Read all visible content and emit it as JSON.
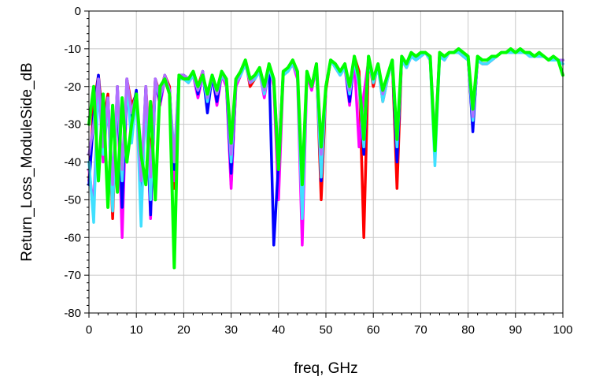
{
  "chart_data": {
    "type": "line",
    "title": "",
    "xlabel": "freq, GHz",
    "ylabel": "Return_Loss_ModuleSide_dB",
    "xlim": [
      0,
      100
    ],
    "ylim": [
      -80,
      0
    ],
    "xticks": [
      0,
      10,
      20,
      30,
      40,
      50,
      60,
      70,
      80,
      90,
      100
    ],
    "yticks": [
      0,
      -10,
      -20,
      -30,
      -40,
      -50,
      -60,
      -70,
      -80
    ],
    "grid": true,
    "legend": "none",
    "colors": {
      "red": "#ff0000",
      "magenta": "#ff00ff",
      "blue": "#0000ff",
      "cyan": "#40e0ff",
      "violet": "#b070ff",
      "green": "#00ff00",
      "grid": "#c8c8c8"
    },
    "series": [
      {
        "color": "red",
        "x": [
          0,
          1,
          2,
          3,
          4,
          5,
          6,
          7,
          8,
          9,
          10,
          11,
          12,
          13,
          14,
          15,
          16,
          17,
          18,
          19,
          20,
          21,
          22,
          23,
          24,
          25,
          26,
          27,
          28,
          29,
          30,
          31,
          32,
          33,
          34,
          35,
          36,
          37,
          38,
          39,
          40,
          41,
          42,
          43,
          44,
          45,
          46,
          47,
          48,
          49,
          50,
          51,
          52,
          53,
          54,
          55,
          56,
          57,
          58,
          59,
          60,
          61,
          62,
          63,
          64,
          65,
          66,
          67,
          68,
          69,
          70,
          71,
          72,
          73,
          74,
          75,
          76,
          77,
          78,
          79,
          80,
          81,
          82,
          83,
          84,
          85,
          86,
          87,
          88,
          89,
          90,
          91,
          92,
          93,
          94,
          95,
          96,
          97,
          98,
          99,
          100
        ],
        "y": [
          -45,
          -25,
          -17,
          -30,
          -22,
          -55,
          -20,
          -57,
          -18,
          -25,
          -22,
          -52,
          -20,
          -40,
          -18,
          -22,
          -17,
          -20,
          -47,
          -17,
          -17,
          -18,
          -16,
          -20,
          -16,
          -25,
          -17,
          -22,
          -16,
          -18,
          -46,
          -20,
          -17,
          -13,
          -20,
          -18,
          -15,
          -22,
          -14,
          -18,
          -44,
          -16,
          -15,
          -13,
          -16,
          -50,
          -16,
          -20,
          -14,
          -50,
          -21,
          -13,
          -14,
          -16,
          -14,
          -22,
          -12,
          -16,
          -60,
          -12,
          -20,
          -14,
          -24,
          -18,
          -13,
          -47,
          -12,
          -15,
          -11,
          -12,
          -12,
          -11,
          -13,
          -35,
          -11,
          -13,
          -11,
          -11,
          -10,
          -12,
          -13,
          -30,
          -13,
          -14,
          -14,
          -13,
          -12,
          -11,
          -11,
          -10,
          -11,
          -10,
          -11,
          -11,
          -12,
          -11,
          -12,
          -13,
          -12,
          -13,
          -13
        ]
      },
      {
        "color": "magenta",
        "x": [
          0,
          1,
          2,
          3,
          4,
          5,
          6,
          7,
          8,
          9,
          10,
          11,
          12,
          13,
          14,
          15,
          16,
          17,
          18,
          19,
          20,
          21,
          22,
          23,
          24,
          25,
          26,
          27,
          28,
          29,
          30,
          31,
          32,
          33,
          34,
          35,
          36,
          37,
          38,
          39,
          40,
          41,
          42,
          43,
          44,
          45,
          46,
          47,
          48,
          49,
          50,
          51,
          52,
          53,
          54,
          55,
          56,
          57,
          58,
          59,
          60,
          61,
          62,
          63,
          64,
          65,
          66,
          67,
          68,
          69,
          70,
          71,
          72,
          73,
          74,
          75,
          76,
          77,
          78,
          79,
          80,
          81,
          82,
          83,
          84,
          85,
          86,
          87,
          88,
          89,
          90,
          91,
          92,
          93,
          94,
          95,
          96,
          97,
          98,
          99,
          100
        ],
        "y": [
          -42,
          -52,
          -18,
          -40,
          -24,
          -48,
          -21,
          -60,
          -19,
          -30,
          -22,
          -50,
          -21,
          -55,
          -19,
          -25,
          -18,
          -22,
          -45,
          -18,
          -18,
          -19,
          -17,
          -23,
          -17,
          -22,
          -17,
          -25,
          -17,
          -20,
          -47,
          -20,
          -17,
          -14,
          -19,
          -18,
          -16,
          -23,
          -15,
          -20,
          -50,
          -17,
          -16,
          -14,
          -18,
          -62,
          -17,
          -21,
          -15,
          -42,
          -20,
          -13,
          -15,
          -17,
          -15,
          -25,
          -13,
          -36,
          -22,
          -13,
          -18,
          -15,
          -22,
          -17,
          -13,
          -38,
          -13,
          -15,
          -12,
          -13,
          -12,
          -11,
          -13,
          -38,
          -12,
          -13,
          -11,
          -11,
          -11,
          -12,
          -13,
          -30,
          -13,
          -14,
          -14,
          -13,
          -12,
          -11,
          -11,
          -11,
          -11,
          -11,
          -11,
          -12,
          -12,
          -12,
          -12,
          -13,
          -13,
          -13,
          -14
        ]
      },
      {
        "color": "blue",
        "x": [
          0,
          1,
          2,
          3,
          4,
          5,
          6,
          7,
          8,
          9,
          10,
          11,
          12,
          13,
          14,
          15,
          16,
          17,
          18,
          19,
          20,
          21,
          22,
          23,
          24,
          25,
          26,
          27,
          28,
          29,
          30,
          31,
          32,
          33,
          34,
          35,
          36,
          37,
          38,
          39,
          40,
          41,
          42,
          43,
          44,
          45,
          46,
          47,
          48,
          49,
          50,
          51,
          52,
          53,
          54,
          55,
          56,
          57,
          58,
          59,
          60,
          61,
          62,
          63,
          64,
          65,
          66,
          67,
          68,
          69,
          70,
          71,
          72,
          73,
          74,
          75,
          76,
          77,
          78,
          79,
          80,
          81,
          82,
          83,
          84,
          85,
          86,
          87,
          88,
          89,
          90,
          91,
          92,
          93,
          94,
          95,
          96,
          97,
          98,
          99,
          100
        ],
        "y": [
          -46,
          -28,
          -17,
          -35,
          -23,
          -50,
          -20,
          -52,
          -18,
          -28,
          -21,
          -48,
          -20,
          -54,
          -18,
          -24,
          -17,
          -21,
          -42,
          -17,
          -17,
          -18,
          -16,
          -22,
          -16,
          -27,
          -17,
          -24,
          -16,
          -19,
          -43,
          -19,
          -16,
          -13,
          -19,
          -17,
          -15,
          -21,
          -14,
          -62,
          -40,
          -16,
          -15,
          -13,
          -17,
          -47,
          -16,
          -20,
          -14,
          -45,
          -20,
          -13,
          -14,
          -16,
          -14,
          -24,
          -12,
          -18,
          -38,
          -12,
          -18,
          -14,
          -23,
          -17,
          -13,
          -40,
          -12,
          -14,
          -11,
          -12,
          -11,
          -11,
          -12,
          -36,
          -11,
          -12,
          -11,
          -11,
          -10,
          -11,
          -12,
          -32,
          -12,
          -13,
          -13,
          -12,
          -12,
          -11,
          -11,
          -10,
          -11,
          -10,
          -11,
          -11,
          -12,
          -11,
          -12,
          -13,
          -12,
          -13,
          -13
        ]
      },
      {
        "color": "cyan",
        "x": [
          0,
          1,
          2,
          3,
          4,
          5,
          6,
          7,
          8,
          9,
          10,
          11,
          12,
          13,
          14,
          15,
          16,
          17,
          18,
          19,
          20,
          21,
          22,
          23,
          24,
          25,
          26,
          27,
          28,
          29,
          30,
          31,
          32,
          33,
          34,
          35,
          36,
          37,
          38,
          39,
          40,
          41,
          42,
          43,
          44,
          45,
          46,
          47,
          48,
          49,
          50,
          51,
          52,
          53,
          54,
          55,
          56,
          57,
          58,
          59,
          60,
          61,
          62,
          63,
          64,
          65,
          66,
          67,
          68,
          69,
          70,
          71,
          72,
          73,
          74,
          75,
          76,
          77,
          78,
          79,
          80,
          81,
          82,
          83,
          84,
          85,
          86,
          87,
          88,
          89,
          90,
          91,
          92,
          93,
          94,
          95,
          96,
          97,
          98,
          99,
          100
        ],
        "y": [
          -40,
          -56,
          -18,
          -38,
          -24,
          -53,
          -21,
          -45,
          -19,
          -35,
          -22,
          -57,
          -21,
          -50,
          -19,
          -23,
          -18,
          -22,
          -38,
          -18,
          -18,
          -19,
          -17,
          -21,
          -17,
          -24,
          -17,
          -22,
          -17,
          -19,
          -40,
          -19,
          -17,
          -14,
          -19,
          -18,
          -16,
          -22,
          -15,
          -19,
          -42,
          -17,
          -16,
          -14,
          -17,
          -55,
          -16,
          -20,
          -15,
          -44,
          -20,
          -13,
          -15,
          -17,
          -15,
          -22,
          -13,
          -20,
          -36,
          -13,
          -19,
          -15,
          -24,
          -18,
          -13,
          -36,
          -13,
          -15,
          -12,
          -13,
          -12,
          -11,
          -13,
          -41,
          -12,
          -13,
          -11,
          -11,
          -11,
          -12,
          -13,
          -29,
          -13,
          -14,
          -14,
          -13,
          -12,
          -11,
          -11,
          -11,
          -11,
          -11,
          -11,
          -12,
          -12,
          -12,
          -12,
          -13,
          -13,
          -13,
          -14
        ]
      },
      {
        "color": "violet",
        "x": [
          0,
          1,
          2,
          3,
          4,
          5,
          6,
          7,
          8,
          9,
          10,
          11,
          12,
          13,
          14,
          15,
          16,
          17,
          18,
          19,
          20,
          21,
          22,
          23,
          24,
          25,
          26,
          27,
          28,
          29,
          30,
          31,
          32,
          33,
          34,
          35,
          36,
          37,
          38,
          39,
          40,
          41,
          42,
          43,
          44,
          45,
          46,
          47,
          48,
          49,
          50,
          51,
          52,
          53,
          54,
          55,
          56,
          57,
          58,
          59,
          60,
          61,
          62,
          63,
          64,
          65,
          66,
          67,
          68,
          69,
          70,
          71,
          72,
          73,
          74,
          75,
          76,
          77,
          78,
          79,
          80,
          81,
          82,
          83,
          84,
          85,
          86,
          87,
          88,
          89,
          90,
          91,
          92,
          93,
          94,
          95,
          96,
          97,
          98,
          99,
          100
        ],
        "y": [
          -38,
          -30,
          -18,
          -36,
          -23,
          -46,
          -20,
          -42,
          -18,
          -27,
          -22,
          -45,
          -20,
          -44,
          -18,
          -23,
          -17,
          -21,
          -40,
          -17,
          -17,
          -18,
          -16,
          -21,
          -16,
          -23,
          -17,
          -22,
          -16,
          -19,
          -38,
          -19,
          -16,
          -13,
          -19,
          -17,
          -15,
          -21,
          -14,
          -18,
          -40,
          -16,
          -15,
          -13,
          -17,
          -45,
          -16,
          -20,
          -14,
          -38,
          -20,
          -13,
          -14,
          -16,
          -14,
          -21,
          -12,
          -18,
          -32,
          -12,
          -18,
          -14,
          -22,
          -17,
          -13,
          -34,
          -12,
          -14,
          -11,
          -12,
          -11,
          -11,
          -12,
          -34,
          -11,
          -12,
          -11,
          -11,
          -10,
          -11,
          -12,
          -28,
          -12,
          -13,
          -13,
          -12,
          -12,
          -11,
          -11,
          -10,
          -11,
          -10,
          -11,
          -11,
          -12,
          -11,
          -12,
          -13,
          -12,
          -13,
          -13
        ]
      },
      {
        "color": "green",
        "x": [
          0,
          1,
          2,
          3,
          4,
          5,
          6,
          7,
          8,
          9,
          10,
          11,
          12,
          13,
          14,
          15,
          16,
          17,
          18,
          19,
          20,
          21,
          22,
          23,
          24,
          25,
          26,
          27,
          28,
          29,
          30,
          31,
          32,
          33,
          34,
          35,
          36,
          37,
          38,
          39,
          40,
          41,
          42,
          43,
          44,
          45,
          46,
          47,
          48,
          49,
          50,
          51,
          52,
          53,
          54,
          55,
          56,
          57,
          58,
          59,
          60,
          61,
          62,
          63,
          64,
          65,
          66,
          67,
          68,
          69,
          70,
          71,
          72,
          73,
          74,
          75,
          76,
          77,
          78,
          79,
          80,
          81,
          82,
          83,
          84,
          85,
          86,
          87,
          88,
          89,
          90,
          91,
          92,
          93,
          94,
          95,
          96,
          97,
          98,
          99,
          100
        ],
        "y": [
          -30,
          -20,
          -45,
          -22,
          -52,
          -25,
          -48,
          -23,
          -40,
          -30,
          -22,
          -38,
          -46,
          -24,
          -50,
          -20,
          -18,
          -22,
          -68,
          -17,
          -18,
          -18,
          -16,
          -20,
          -17,
          -22,
          -17,
          -21,
          -16,
          -18,
          -35,
          -18,
          -16,
          -13,
          -18,
          -17,
          -15,
          -20,
          -14,
          -18,
          -42,
          -16,
          -15,
          -13,
          -16,
          -46,
          -16,
          -20,
          -14,
          -36,
          -20,
          -13,
          -14,
          -16,
          -14,
          -20,
          -12,
          -18,
          -34,
          -12,
          -18,
          -14,
          -21,
          -17,
          -13,
          -34,
          -12,
          -14,
          -11,
          -12,
          -11,
          -11,
          -12,
          -37,
          -11,
          -12,
          -11,
          -11,
          -10,
          -11,
          -12,
          -26,
          -12,
          -13,
          -13,
          -12,
          -12,
          -11,
          -11,
          -10,
          -11,
          -10,
          -11,
          -11,
          -12,
          -11,
          -12,
          -13,
          -12,
          -13,
          -17
        ]
      }
    ]
  }
}
